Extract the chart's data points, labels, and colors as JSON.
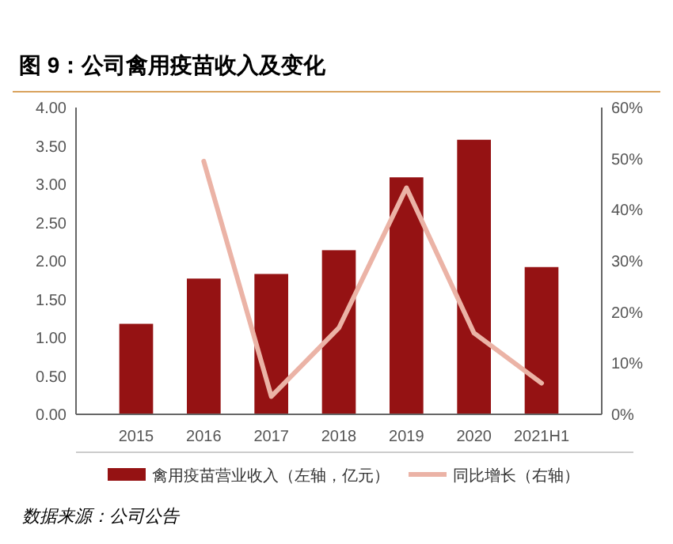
{
  "chart_data": {
    "type": "bar",
    "title": "图 9：公司禽用疫苗收入及变化",
    "categories": [
      "2015",
      "2016",
      "2017",
      "2018",
      "2019",
      "2020",
      "2021H1"
    ],
    "series": [
      {
        "name": "禽用疫苗营业收入（左轴，亿元）",
        "color": "#951213",
        "values": [
          1.18,
          1.77,
          1.83,
          2.14,
          3.09,
          3.58,
          1.92
        ]
      },
      {
        "name": "同比增长（右轴）",
        "type": "line",
        "axis": "y2",
        "color": "#ebb3a6",
        "values": [
          null,
          49.5,
          3.5,
          16.9,
          44.3,
          15.9,
          6.1
        ]
      }
    ],
    "ylim": [
      0,
      4
    ],
    "yticks": [
      {
        "value": 0,
        "label": "0.00"
      },
      {
        "value": 0.5,
        "label": "0.50"
      },
      {
        "value": 1,
        "label": "1.00"
      },
      {
        "value": 1.5,
        "label": "1.50"
      },
      {
        "value": 2,
        "label": "2.00"
      },
      {
        "value": 2.5,
        "label": "2.50"
      },
      {
        "value": 3,
        "label": "3.00"
      },
      {
        "value": 3.5,
        "label": "3.50"
      },
      {
        "value": 4,
        "label": "4.00"
      }
    ],
    "y2lim": [
      0,
      60
    ],
    "y2ticks": [
      {
        "value": 0,
        "label": "0%"
      },
      {
        "value": 10,
        "label": "10%"
      },
      {
        "value": 20,
        "label": "20%"
      },
      {
        "value": 30,
        "label": "30%"
      },
      {
        "value": 40,
        "label": "40%"
      },
      {
        "value": 50,
        "label": "50%"
      },
      {
        "value": 60,
        "label": "60%"
      }
    ],
    "legend": "bottom",
    "annotations": [
      "数据来源：公司公告"
    ]
  }
}
